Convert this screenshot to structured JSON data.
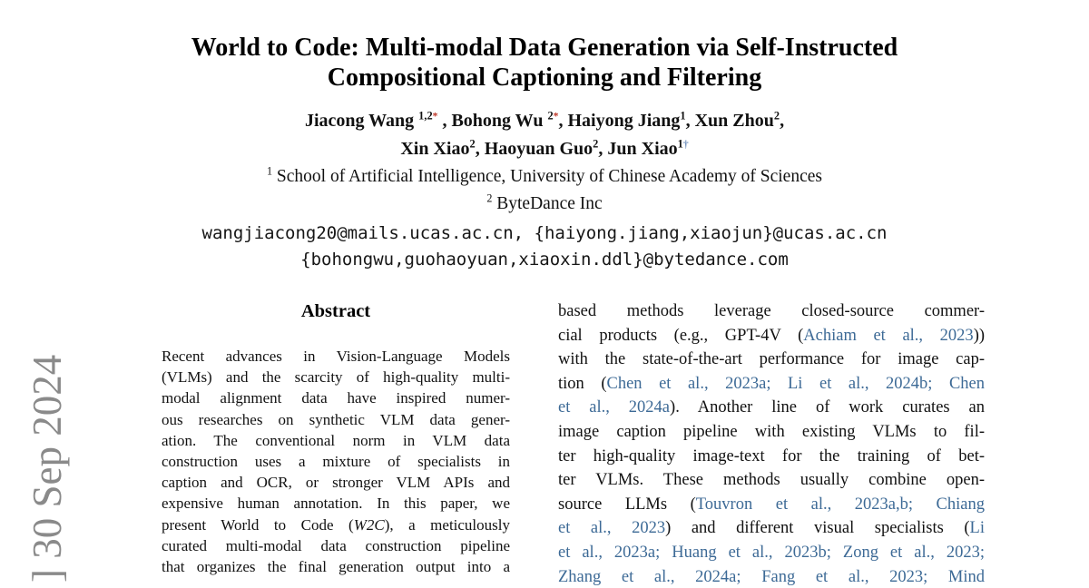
{
  "watermark": {
    "text": "] 30 Sep 2024",
    "color": "#8a8a8a"
  },
  "colors": {
    "citation_link": "#3d6a96",
    "footnote_star": "#c0392b",
    "footnote_dagger": "#6b8cba",
    "page_background": "#ffffff"
  },
  "title": {
    "line1": "World to Code: Multi-modal Data Generation via Self-Instructed",
    "line2": "Compositional Captioning and Filtering"
  },
  "authors": {
    "lines": [
      [
        [
          "n",
          "Jiacong Wang "
        ],
        [
          "sup",
          "1,2"
        ],
        [
          "star",
          "*"
        ],
        [
          "n",
          " , Bohong Wu "
        ],
        [
          "sup",
          "2"
        ],
        [
          "star",
          "*"
        ],
        [
          "n",
          ", Haiyong Jiang"
        ],
        [
          "sup",
          "1"
        ],
        [
          "n",
          ", Xun Zhou"
        ],
        [
          "sup",
          "2"
        ],
        [
          "n",
          ","
        ]
      ],
      [
        [
          "n",
          "Xin Xiao"
        ],
        [
          "sup",
          "2"
        ],
        [
          "n",
          ", Haoyuan Guo"
        ],
        [
          "sup",
          "2"
        ],
        [
          "n",
          ", Jun Xiao"
        ],
        [
          "sup",
          "1"
        ],
        [
          "dag",
          "†"
        ]
      ]
    ]
  },
  "affiliations": {
    "lines": [
      [
        [
          "sup",
          "1"
        ],
        [
          "n",
          " School of Artificial Intelligence, University of Chinese Academy of Sciences"
        ]
      ],
      [
        [
          "sup",
          "2"
        ],
        [
          "n",
          " ByteDance Inc"
        ]
      ]
    ]
  },
  "emails": {
    "line1": "wangjiacong20@mails.ucas.ac.cn, {haiyong.jiang,xiaojun}@ucas.ac.cn",
    "line2": "{bohongwu,guohaoyuan,xiaoxin.ddl}@bytedance.com"
  },
  "abstract": {
    "heading": "Abstract",
    "lines": [
      [
        [
          "n",
          "Recent advances in Vision-Language Models"
        ]
      ],
      [
        [
          "n",
          "(VLMs) and the scarcity of high-quality multi-"
        ]
      ],
      [
        [
          "n",
          "modal alignment data have inspired numer-"
        ]
      ],
      [
        [
          "n",
          "ous researches on synthetic VLM data gener-"
        ]
      ],
      [
        [
          "n",
          "ation. The conventional norm in VLM data"
        ]
      ],
      [
        [
          "n",
          "construction uses a mixture of specialists in"
        ]
      ],
      [
        [
          "n",
          "caption and OCR, or stronger VLM APIs and"
        ]
      ],
      [
        [
          "n",
          "expensive human annotation. In this paper, we"
        ]
      ],
      [
        [
          "n",
          "present World to Code ("
        ],
        [
          "i",
          "W2C"
        ],
        [
          "n",
          "), a meticulously"
        ]
      ],
      [
        [
          "n",
          "curated multi-modal data construction pipeline"
        ]
      ],
      [
        [
          "n",
          "that organizes the final generation output into a"
        ]
      ]
    ]
  },
  "right_column": {
    "lines": [
      [
        [
          "n",
          "based methods leverage closed-source commer-"
        ]
      ],
      [
        [
          "n",
          "cial products (e.g., GPT-4V ("
        ],
        [
          "c",
          "Achiam et al., 2023"
        ],
        [
          "n",
          "))"
        ]
      ],
      [
        [
          "n",
          "with the state-of-the-art performance for image cap-"
        ]
      ],
      [
        [
          "n",
          "tion ("
        ],
        [
          "c",
          "Chen et al., 2023a; Li et al., 2024b; Chen"
        ]
      ],
      [
        [
          "c",
          "et al., 2024a"
        ],
        [
          "n",
          "). Another line of work curates an"
        ]
      ],
      [
        [
          "n",
          "image caption pipeline with existing VLMs to fil-"
        ]
      ],
      [
        [
          "n",
          "ter high-quality image-text for the training of bet-"
        ]
      ],
      [
        [
          "n",
          "ter VLMs. These methods usually combine open-"
        ]
      ],
      [
        [
          "n",
          "source LLMs ("
        ],
        [
          "c",
          "Touvron et al., 2023a,b; Chiang"
        ]
      ],
      [
        [
          "c",
          "et al., 2023"
        ],
        [
          "n",
          ") and different visual specialists ("
        ],
        [
          "c",
          "Li"
        ]
      ],
      [
        [
          "c",
          "et al., 2023a; Huang et al., 2023b; Zong et al., 2023;"
        ]
      ],
      [
        [
          "c",
          "Zhang et al., 2024a; Fang et al., 2023; Mind"
        ]
      ]
    ]
  }
}
